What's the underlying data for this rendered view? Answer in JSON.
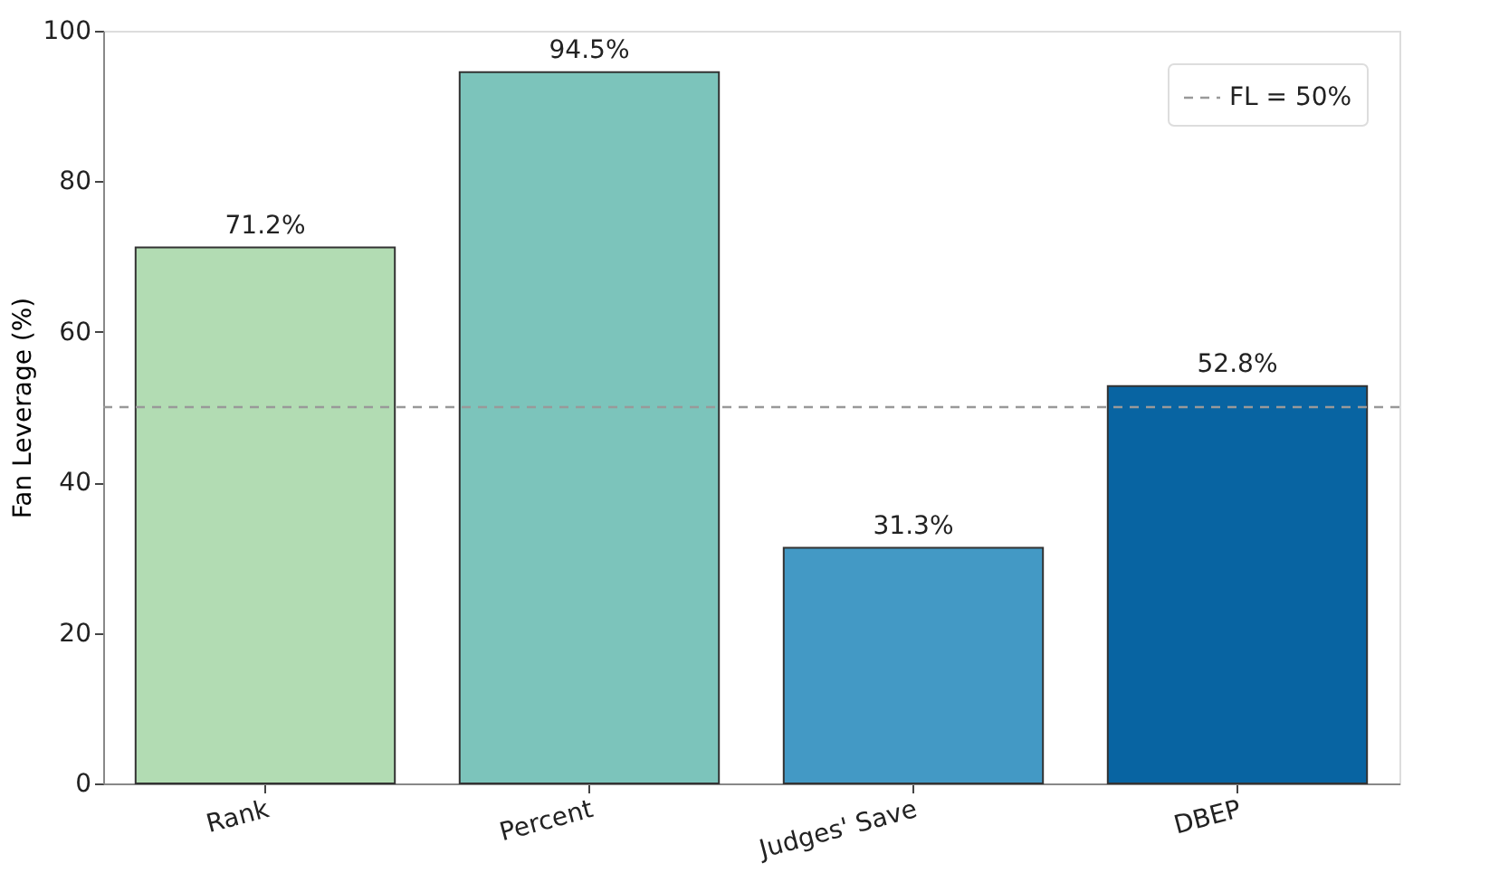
{
  "chart_data": {
    "type": "bar",
    "ylabel": "Fan Leverage (%)",
    "categories": [
      "Rank",
      "Percent",
      "Judges' Save",
      "DBEP"
    ],
    "values": [
      71.2,
      94.5,
      31.3,
      52.8
    ],
    "colors": [
      "#b2dcb3",
      "#7cc4bb",
      "#4399c5",
      "#0864a2"
    ],
    "value_labels": [
      "71.2%",
      "94.5%",
      "31.3%",
      "52.8%"
    ],
    "ylim": [
      0,
      100
    ],
    "yticks": [
      0,
      20,
      40,
      60,
      80,
      100
    ],
    "ref_lines": [
      {
        "axis": "y",
        "value": 50,
        "label": "FL = 50%",
        "color": "#999999",
        "line_style": "dashed"
      }
    ],
    "legend": "top right",
    "grid": false
  }
}
